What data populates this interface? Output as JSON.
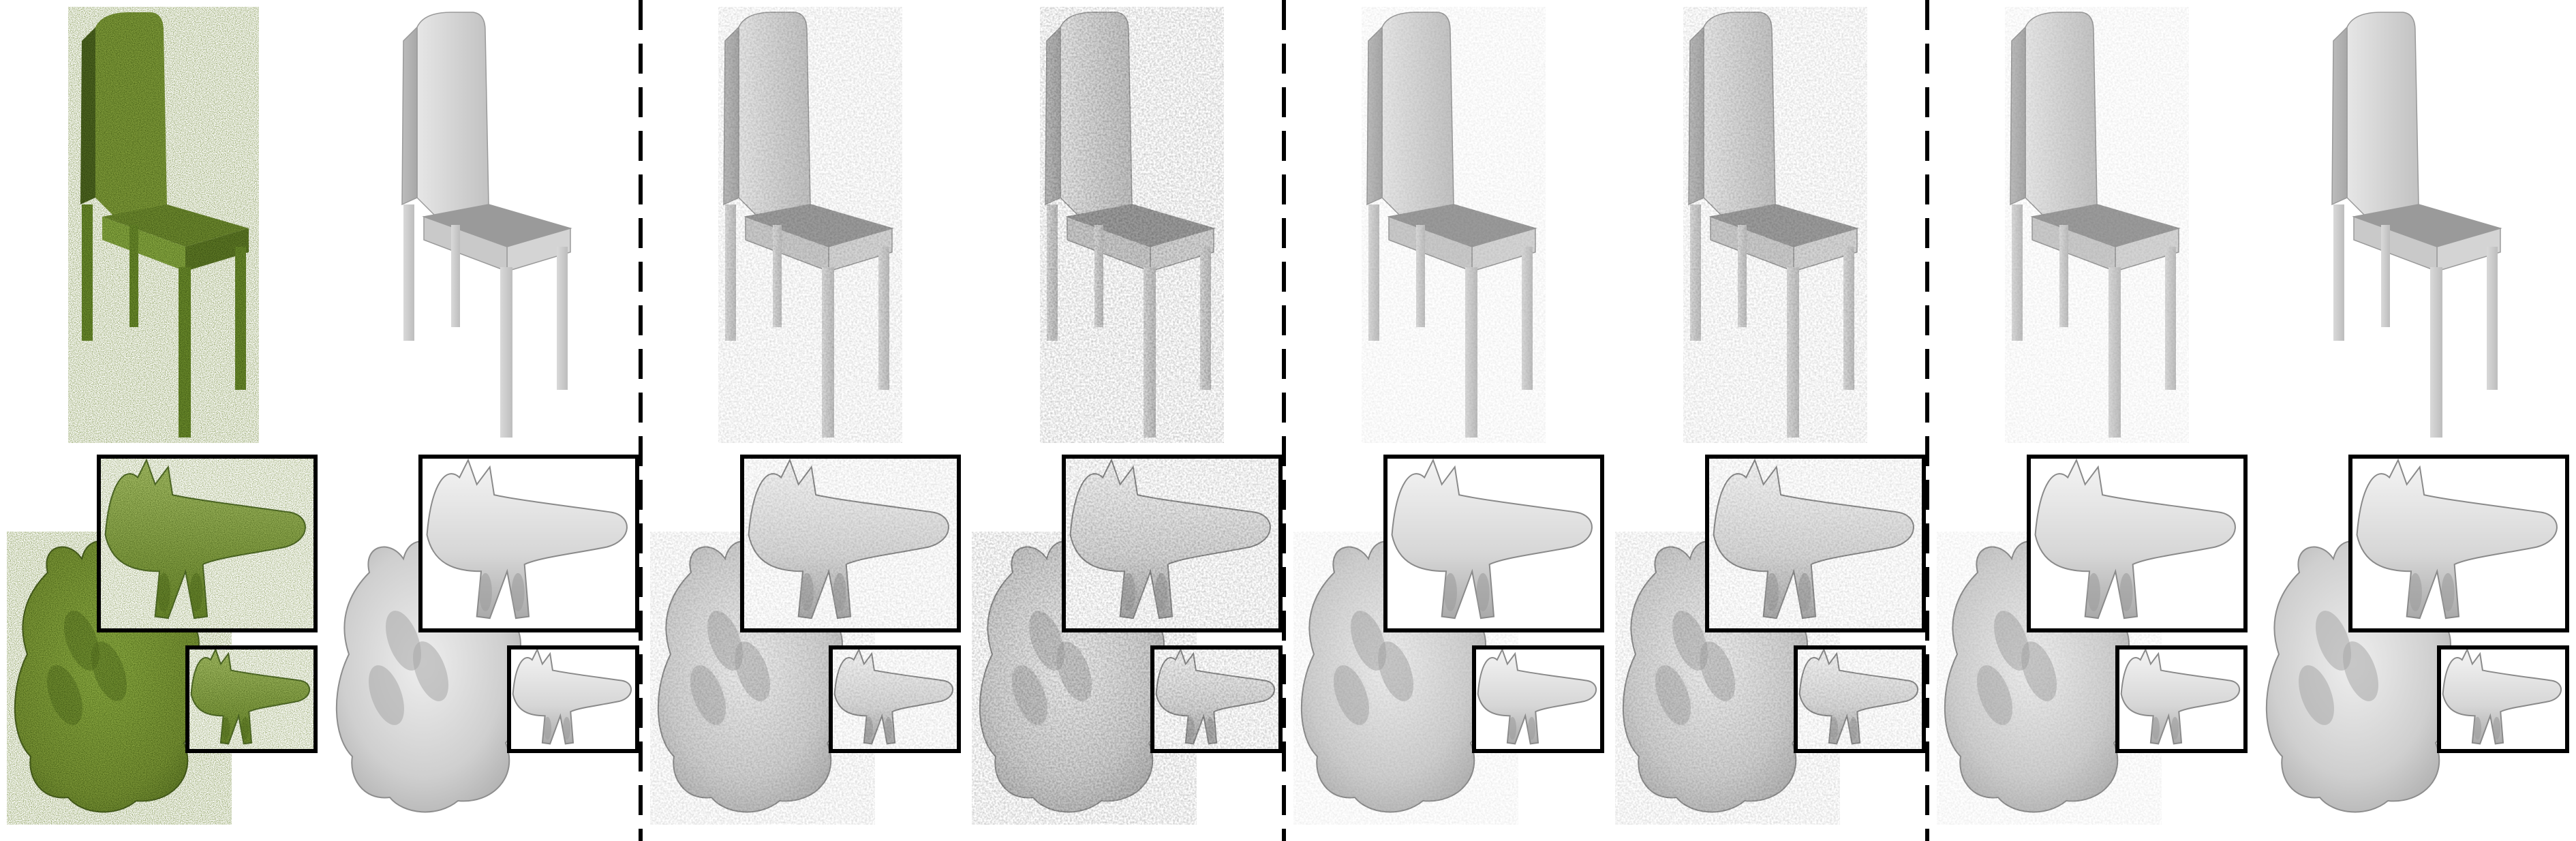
{
  "figure": {
    "columns": [
      {
        "id": "input-pointcloud",
        "style": "pointcloud"
      },
      {
        "id": "ground-truth",
        "style": "smooth"
      },
      {
        "id": "method-a",
        "style": "noisy"
      },
      {
        "id": "method-b",
        "style": "very-noisy"
      },
      {
        "id": "method-c",
        "style": "mild"
      },
      {
        "id": "method-d",
        "style": "noisy"
      },
      {
        "id": "method-e",
        "style": "mild"
      },
      {
        "id": "method-f",
        "style": "smooth"
      }
    ],
    "rows": [
      "chair",
      "coral-with-zoom-insets"
    ],
    "separator_after_columns": [
      2,
      4,
      6
    ],
    "colors": {
      "pointcloud": "#7f9a3a",
      "pointcloud_dark": "#4d6420",
      "mesh_light": "#dddddd",
      "mesh_mid": "#bdbdbd",
      "mesh_dark": "#8f8f8f",
      "seat": "#9a9a9a",
      "inset_border": "#000000",
      "separator": "#000000"
    }
  }
}
